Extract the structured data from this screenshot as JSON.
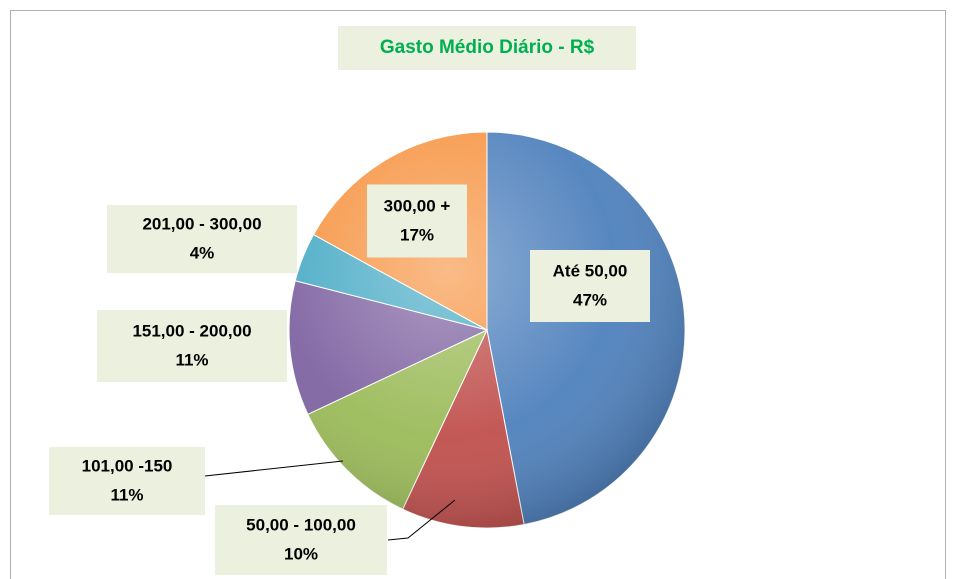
{
  "chart_data": {
    "type": "pie",
    "title": "Gasto Médio Diário - R$",
    "categories": [
      "Até 50,00",
      "50,00 - 100,00",
      "101,00 -150",
      "151,00 - 200,00",
      "201,00 - 300,00",
      "300,00 +"
    ],
    "values": [
      47,
      10,
      11,
      11,
      4,
      17
    ],
    "value_labels": [
      "47%",
      "10%",
      "11%",
      "11%",
      "4%",
      "17%"
    ],
    "colors": [
      "#4f81bd",
      "#c0504d",
      "#9bbb59",
      "#8064a2",
      "#4bacc6",
      "#f79646"
    ]
  }
}
